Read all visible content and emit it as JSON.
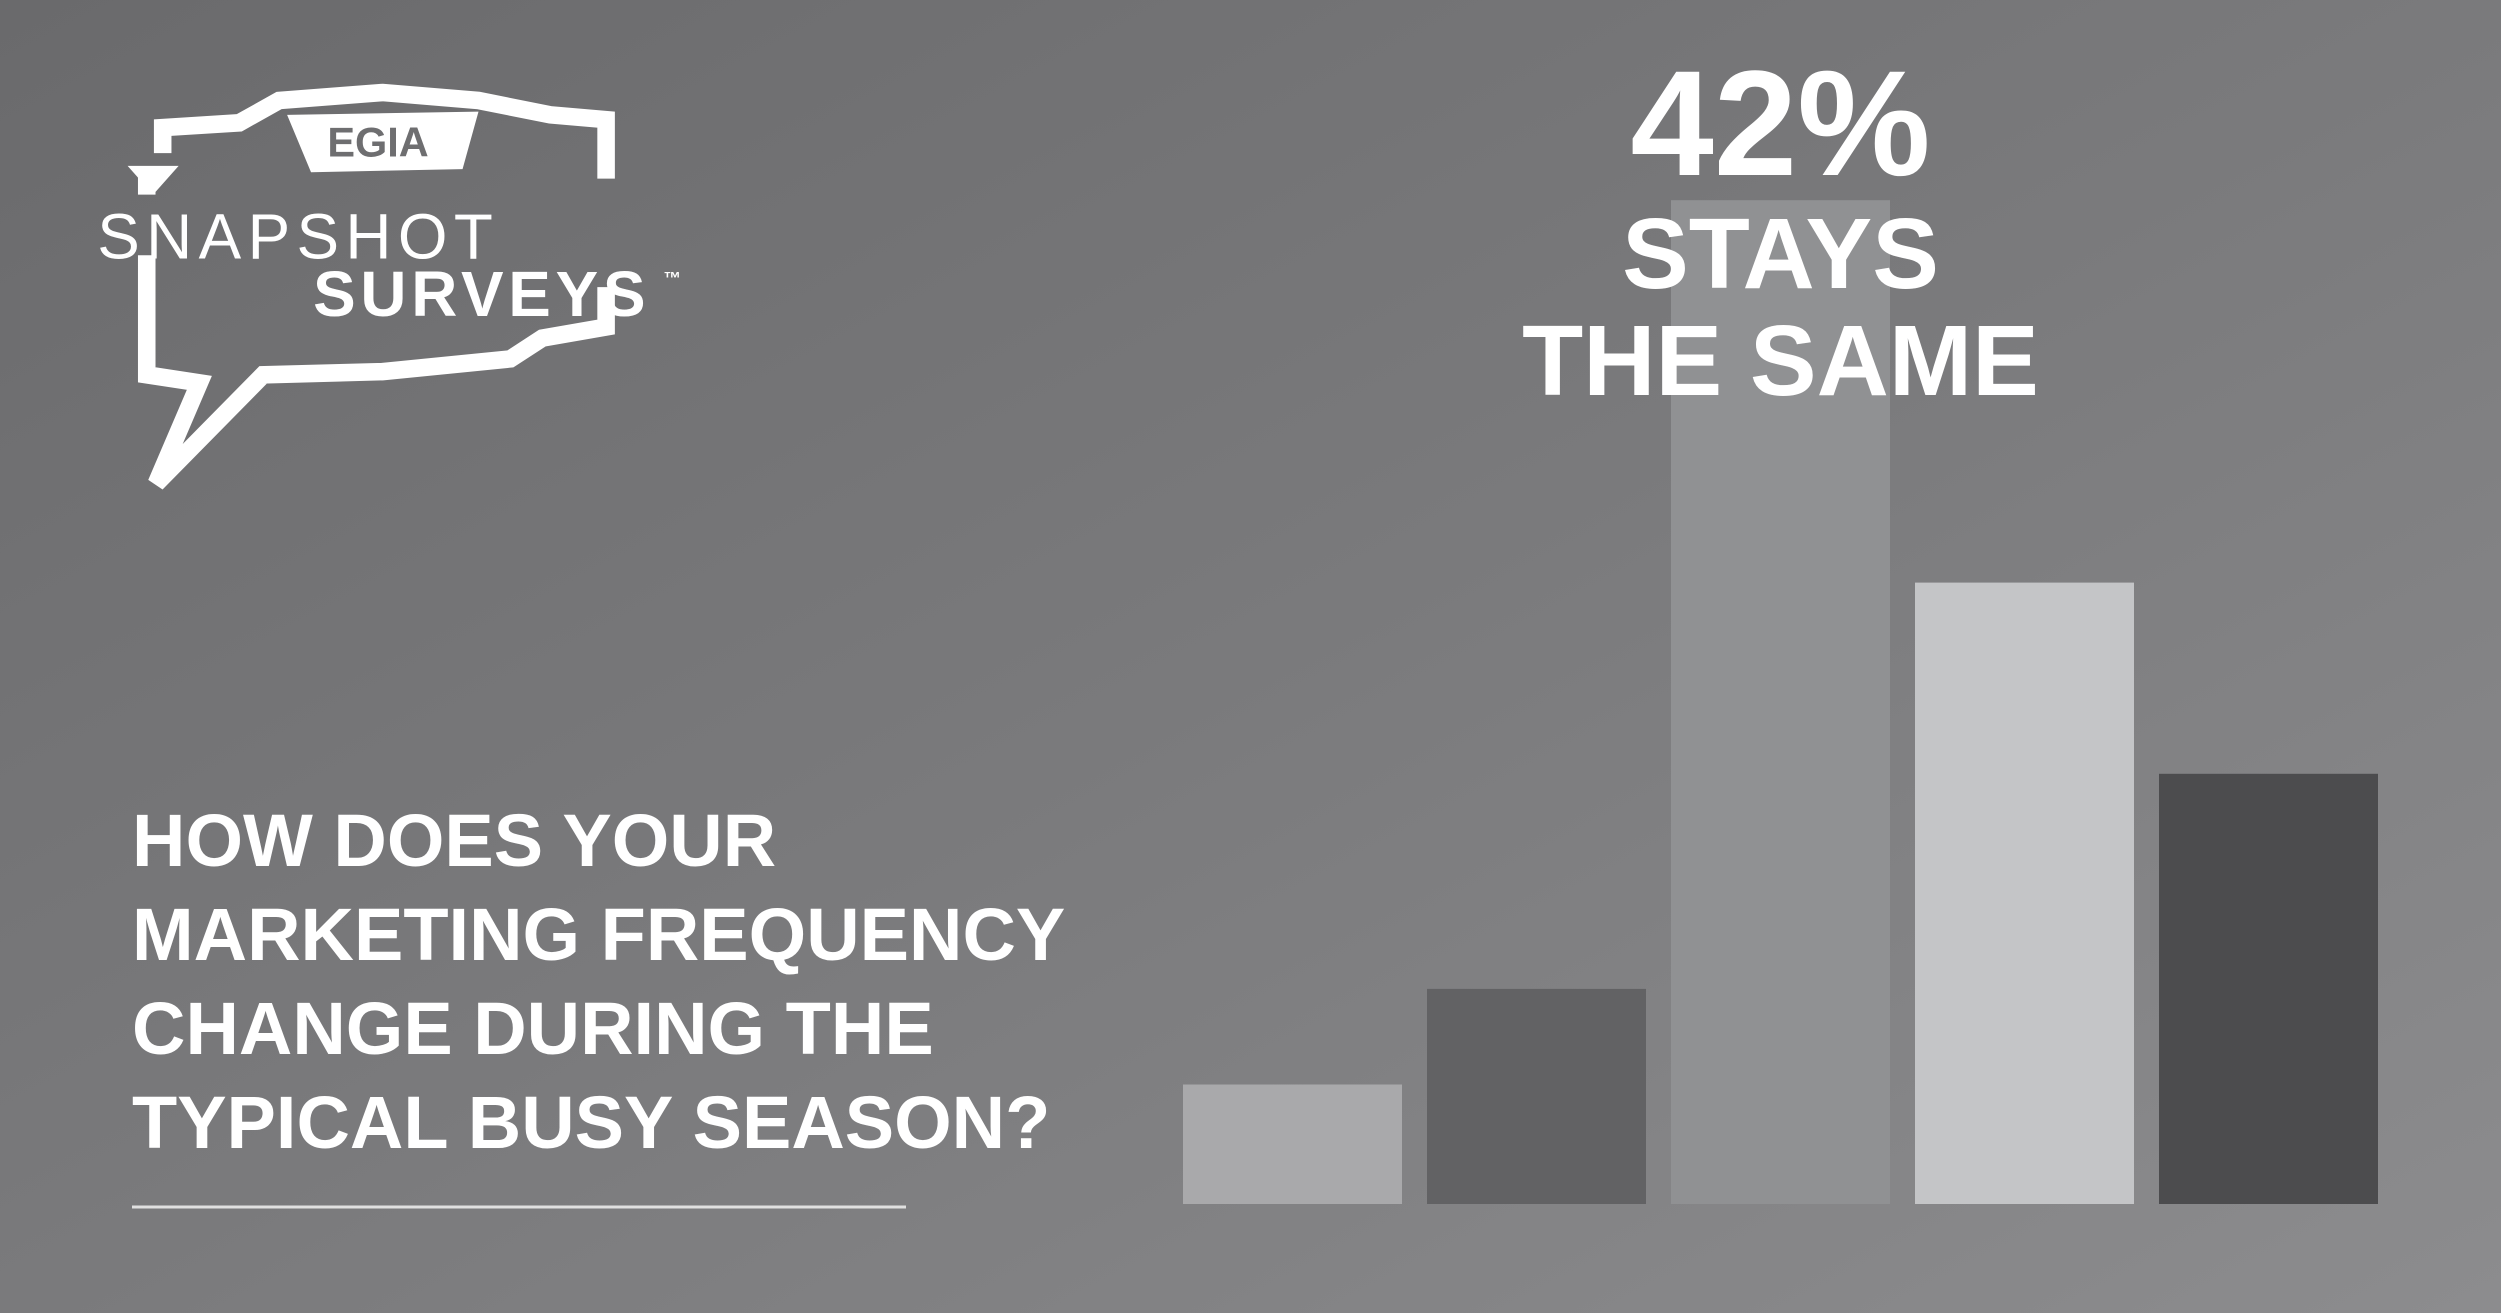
{
  "logo": {
    "brand": "EGIA",
    "line1": "SNAPSHOT",
    "line2": "SURVEYS",
    "mark": "™"
  },
  "chart_data": {
    "type": "bar",
    "title": [
      "HOW DOES YOUR",
      "MARKETING FREQUENCY",
      "CHANGE DURING THE",
      "TYPICAL BUSY SEASON?"
    ],
    "categories": [
      null,
      null,
      null,
      null,
      null
    ],
    "values": [
      5,
      9,
      42,
      26,
      18
    ],
    "value_labels": [
      null,
      null,
      "42%",
      null,
      null
    ],
    "colors": [
      "#a9a9ab",
      "#626264",
      "#909193",
      "#c4c5c7",
      "#4c4c4e"
    ],
    "annotation": [
      "STAYS",
      "THE SAME"
    ]
  }
}
